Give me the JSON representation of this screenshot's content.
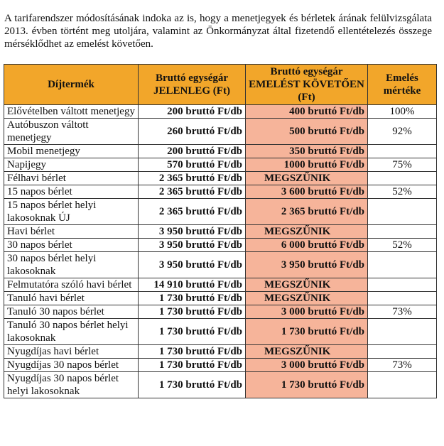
{
  "intro_text": "A tarifarendszer módosításának indoka az is, hogy a menetjegyek és bérletek árának felülvizsgálata 2013. évben történt meg utoljára, valamint az Önkormányzat által fizetendő ellentételezés összege mérséklődhet az emelést követően.",
  "table": {
    "headers": [
      "Díjtermék",
      "Bruttó egységár JELENLEG (Ft)",
      "Bruttó egységár EMELÉST KÖVETŐEN (Ft)",
      "Emelés mértéke"
    ],
    "rows": [
      {
        "name": "Elővételben váltott menetjegy",
        "current": "200 bruttó Ft/db",
        "new": "400 bruttó Ft/db",
        "increase": "100%"
      },
      {
        "name": "Autóbuszon váltott menetjegy",
        "current": "260 bruttó Ft/db",
        "new": "500 bruttó Ft/db",
        "increase": "92%"
      },
      {
        "name": "Mobil menetjegy",
        "current": "200 bruttó Ft/db",
        "new": "350 bruttó Ft/db",
        "increase": ""
      },
      {
        "name": "Napijegy",
        "current": "570 bruttó Ft/db",
        "new": "1000 bruttó Ft/db",
        "increase": "75%"
      },
      {
        "name": "Félhavi bérlet",
        "current": "2 365 bruttó Ft/db",
        "new": "MEGSZŰNIK",
        "increase": ""
      },
      {
        "name": "15 napos bérlet",
        "current": "2 365 bruttó Ft/db",
        "new": "3 600 bruttó Ft/db",
        "increase": "52%"
      },
      {
        "name": "15 napos bérlet helyi lakosoknak ÚJ",
        "current": "2 365 bruttó Ft/db",
        "new": "2 365 bruttó Ft/db",
        "increase": ""
      },
      {
        "name": "Havi bérlet",
        "current": "3 950 bruttó Ft/db",
        "new": "MEGSZŰNIK",
        "increase": ""
      },
      {
        "name": "30 napos bérlet",
        "current": "3 950 bruttó Ft/db",
        "new": "6 000 bruttó Ft/db",
        "increase": "52%"
      },
      {
        "name": "30 napos bérlet helyi lakosoknak",
        "current": "3 950 bruttó Ft/db",
        "new": "3 950 bruttó Ft/db",
        "increase": ""
      },
      {
        "name": "Felmutatóra szóló havi bérlet",
        "current": "14 910 bruttó Ft/db",
        "new": "MEGSZŰNIK",
        "increase": ""
      },
      {
        "name": "Tanuló havi bérlet",
        "current": "1 730 bruttó Ft/db",
        "new": "MEGSZŰNIK",
        "increase": ""
      },
      {
        "name": "Tanuló 30 napos bérlet",
        "current": "1 730 bruttó Ft/db",
        "new": "3 000 bruttó Ft/db",
        "increase": "73%"
      },
      {
        "name": "Tanuló 30 napos bérlet helyi lakosoknak",
        "current": "1 730 bruttó Ft/db",
        "new": "1 730 bruttó Ft/db",
        "increase": ""
      },
      {
        "name": "Nyugdíjas havi bérlet",
        "current": "1 730 bruttó Ft/db",
        "new": "MEGSZŰNIK",
        "increase": ""
      },
      {
        "name": "Nyugdíjas 30 napos bérlet",
        "current": "1 730 bruttó Ft/db",
        "new": "3 000 bruttó Ft/db",
        "increase": "73%"
      },
      {
        "name": "Nyugdíjas 30 napos bérlet helyi lakosoknak",
        "current": "1 730 bruttó Ft/db",
        "new": "1 730 bruttó Ft/db",
        "increase": ""
      }
    ]
  },
  "colors": {
    "header_bg": "#f2a62a",
    "new_price_bg": "#f6b49a"
  }
}
